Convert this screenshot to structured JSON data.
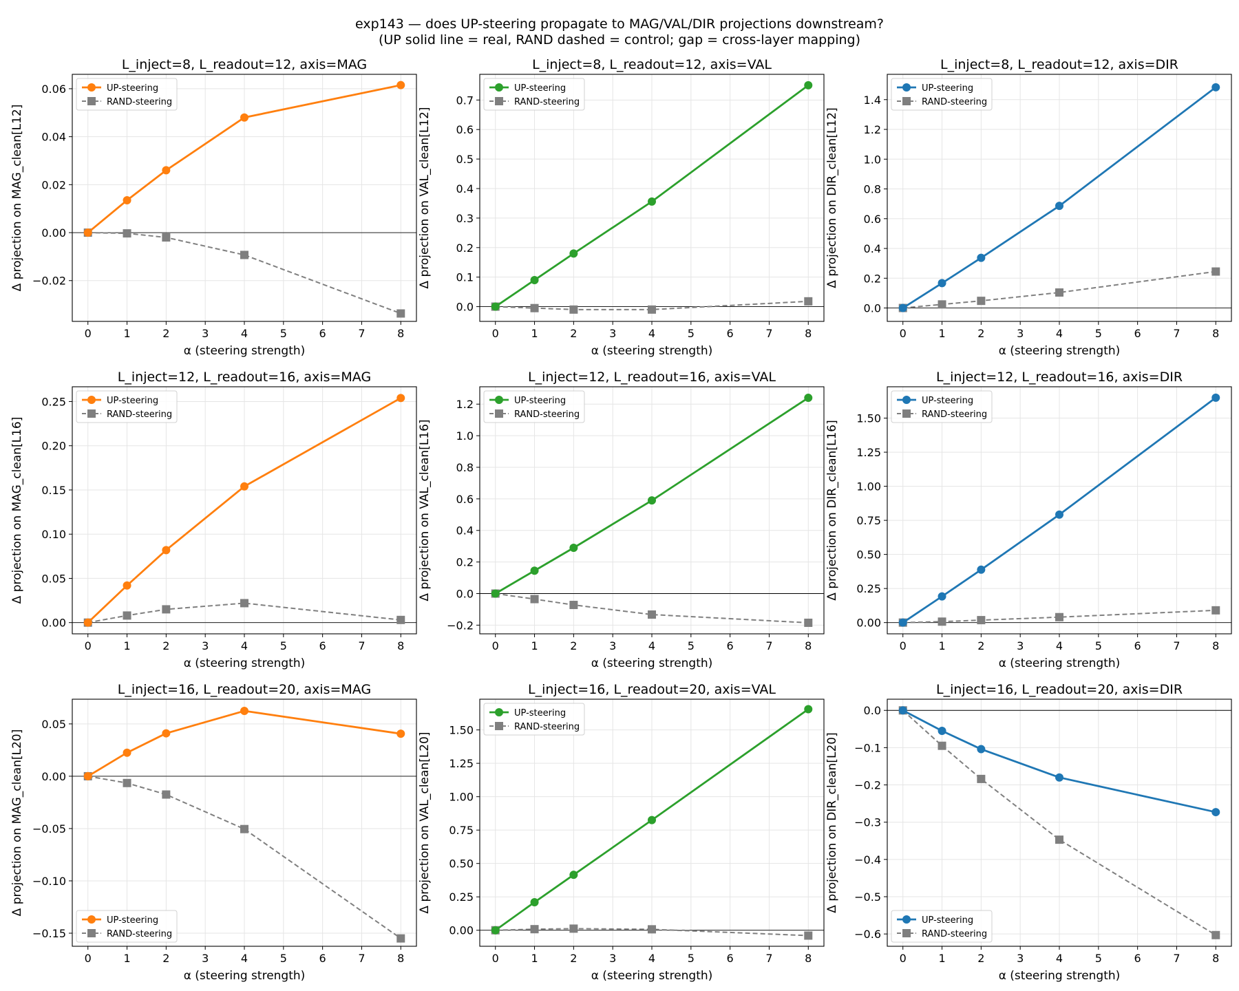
{
  "figure": {
    "title_line1": "exp143 — does UP-steering propagate to MAG/VAL/DIR projections downstream?",
    "title_line2": "(UP solid line = real, RAND dashed = control; gap = cross-layer mapping)"
  },
  "colors": {
    "MAG": "#ff7f0e",
    "VAL": "#2ca02c",
    "DIR": "#1f77b4",
    "rand": "#7f7f7f"
  },
  "chart_data": [
    {
      "type": "line",
      "title": "L_inject=8, L_readout=12, axis=MAG",
      "axis": "MAG",
      "xlabel": "α (steering strength)",
      "ylabel": "Δ projection on MAG_clean[L12]",
      "x": [
        0,
        1,
        2,
        4,
        8
      ],
      "xlim": [
        -0.4,
        8.4
      ],
      "xticks": [
        0,
        1,
        2,
        3,
        4,
        5,
        6,
        7,
        8
      ],
      "ylim": [
        -0.037,
        0.066
      ],
      "yticks": [
        -0.02,
        0.0,
        0.02,
        0.04,
        0.06
      ],
      "ytick_labels": [
        "−0.02",
        "0.00",
        "0.02",
        "0.04",
        "0.06"
      ],
      "legend": "upper left",
      "series": [
        {
          "name": "UP-steering",
          "style": "solid",
          "marker": "circle",
          "values": [
            0.0,
            0.0135,
            0.026,
            0.048,
            0.0615
          ]
        },
        {
          "name": "RAND-steering",
          "style": "dashed",
          "marker": "square",
          "values": [
            0.0,
            -0.0003,
            -0.002,
            -0.0093,
            -0.0337
          ]
        }
      ]
    },
    {
      "type": "line",
      "title": "L_inject=8, L_readout=12, axis=VAL",
      "axis": "VAL",
      "xlabel": "α (steering strength)",
      "ylabel": "Δ projection on VAL_clean[L12]",
      "x": [
        0,
        1,
        2,
        4,
        8
      ],
      "xlim": [
        -0.4,
        8.4
      ],
      "xticks": [
        0,
        1,
        2,
        3,
        4,
        5,
        6,
        7,
        8
      ],
      "ylim": [
        -0.05,
        0.787
      ],
      "yticks": [
        0.0,
        0.1,
        0.2,
        0.3,
        0.4,
        0.5,
        0.6,
        0.7
      ],
      "ytick_labels": [
        "0.0",
        "0.1",
        "0.2",
        "0.3",
        "0.4",
        "0.5",
        "0.6",
        "0.7"
      ],
      "legend": "upper left",
      "series": [
        {
          "name": "UP-steering",
          "style": "solid",
          "marker": "circle",
          "values": [
            0.0,
            0.09,
            0.18,
            0.356,
            0.75
          ]
        },
        {
          "name": "RAND-steering",
          "style": "dashed",
          "marker": "square",
          "values": [
            0.0,
            -0.005,
            -0.01,
            -0.01,
            0.018
          ]
        }
      ]
    },
    {
      "type": "line",
      "title": "L_inject=8, L_readout=12, axis=DIR",
      "axis": "DIR",
      "xlabel": "α (steering strength)",
      "ylabel": "Δ projection on DIR_clean[L12]",
      "x": [
        0,
        1,
        2,
        4,
        8
      ],
      "xlim": [
        -0.4,
        8.4
      ],
      "xticks": [
        0,
        1,
        2,
        3,
        4,
        5,
        6,
        7,
        8
      ],
      "ylim": [
        -0.09,
        1.57
      ],
      "yticks": [
        0.0,
        0.2,
        0.4,
        0.6,
        0.8,
        1.0,
        1.2,
        1.4
      ],
      "ytick_labels": [
        "0.0",
        "0.2",
        "0.4",
        "0.6",
        "0.8",
        "1.0",
        "1.2",
        "1.4"
      ],
      "legend": "upper left",
      "series": [
        {
          "name": "UP-steering",
          "style": "solid",
          "marker": "circle",
          "values": [
            0.0,
            0.167,
            0.337,
            0.686,
            1.483
          ]
        },
        {
          "name": "RAND-steering",
          "style": "dashed",
          "marker": "square",
          "values": [
            0.0,
            0.024,
            0.048,
            0.104,
            0.245
          ]
        }
      ]
    },
    {
      "type": "line",
      "title": "L_inject=12, L_readout=16, axis=MAG",
      "axis": "MAG",
      "xlabel": "α (steering strength)",
      "ylabel": "Δ projection on MAG_clean[L16]",
      "x": [
        0,
        1,
        2,
        4,
        8
      ],
      "xlim": [
        -0.4,
        8.4
      ],
      "xticks": [
        0,
        1,
        2,
        3,
        4,
        5,
        6,
        7,
        8
      ],
      "ylim": [
        -0.0127,
        0.2667
      ],
      "yticks": [
        0.0,
        0.05,
        0.1,
        0.15,
        0.2,
        0.25
      ],
      "ytick_labels": [
        "0.00",
        "0.05",
        "0.10",
        "0.15",
        "0.20",
        "0.25"
      ],
      "legend": "upper left",
      "series": [
        {
          "name": "UP-steering",
          "style": "solid",
          "marker": "circle",
          "values": [
            0.0,
            0.042,
            0.082,
            0.154,
            0.254
          ]
        },
        {
          "name": "RAND-steering",
          "style": "dashed",
          "marker": "square",
          "values": [
            0.0,
            0.008,
            0.015,
            0.022,
            0.003
          ]
        }
      ]
    },
    {
      "type": "line",
      "title": "L_inject=12, L_readout=16, axis=VAL",
      "axis": "VAL",
      "xlabel": "α (steering strength)",
      "ylabel": "Δ projection on VAL_clean[L16]",
      "x": [
        0,
        1,
        2,
        4,
        8
      ],
      "xlim": [
        -0.4,
        8.4
      ],
      "xticks": [
        0,
        1,
        2,
        3,
        4,
        5,
        6,
        7,
        8
      ],
      "ylim": [
        -0.255,
        1.31
      ],
      "yticks": [
        -0.2,
        0.0,
        0.2,
        0.4,
        0.6,
        0.8,
        1.0,
        1.2
      ],
      "ytick_labels": [
        "−0.2",
        "0.0",
        "0.2",
        "0.4",
        "0.6",
        "0.8",
        "1.0",
        "1.2"
      ],
      "legend": "upper left",
      "series": [
        {
          "name": "UP-steering",
          "style": "solid",
          "marker": "circle",
          "values": [
            0.0,
            0.145,
            0.29,
            0.59,
            1.24
          ]
        },
        {
          "name": "RAND-steering",
          "style": "dashed",
          "marker": "square",
          "values": [
            0.0,
            -0.035,
            -0.072,
            -0.133,
            -0.185
          ]
        }
      ]
    },
    {
      "type": "line",
      "title": "L_inject=12, L_readout=16, axis=DIR",
      "axis": "DIR",
      "xlabel": "α (steering strength)",
      "ylabel": "Δ projection on DIR_clean[L16]",
      "x": [
        0,
        1,
        2,
        4,
        8
      ],
      "xlim": [
        -0.4,
        8.4
      ],
      "xticks": [
        0,
        1,
        2,
        3,
        4,
        5,
        6,
        7,
        8
      ],
      "ylim": [
        -0.0825,
        1.73
      ],
      "yticks": [
        0.0,
        0.25,
        0.5,
        0.75,
        1.0,
        1.25,
        1.5
      ],
      "ytick_labels": [
        "0.00",
        "0.25",
        "0.50",
        "0.75",
        "1.00",
        "1.25",
        "1.50"
      ],
      "legend": "upper left",
      "series": [
        {
          "name": "UP-steering",
          "style": "solid",
          "marker": "circle",
          "values": [
            0.0,
            0.192,
            0.388,
            0.792,
            1.65
          ]
        },
        {
          "name": "RAND-steering",
          "style": "dashed",
          "marker": "square",
          "values": [
            0.0,
            0.007,
            0.018,
            0.04,
            0.09
          ]
        }
      ]
    },
    {
      "type": "line",
      "title": "L_inject=16, L_readout=20, axis=MAG",
      "axis": "MAG",
      "xlabel": "α (steering strength)",
      "ylabel": "Δ projection on MAG_clean[L20]",
      "x": [
        0,
        1,
        2,
        4,
        8
      ],
      "xlim": [
        -0.4,
        8.4
      ],
      "xticks": [
        0,
        1,
        2,
        3,
        4,
        5,
        6,
        7,
        8
      ],
      "ylim": [
        -0.1625,
        0.0736
      ],
      "yticks": [
        -0.15,
        -0.1,
        -0.05,
        0.0,
        0.05
      ],
      "ytick_labels": [
        "−0.15",
        "−0.10",
        "−0.05",
        "0.00",
        "0.05"
      ],
      "legend": "lower left",
      "series": [
        {
          "name": "UP-steering",
          "style": "solid",
          "marker": "circle",
          "values": [
            0.0,
            0.0225,
            0.041,
            0.0624,
            0.0406
          ]
        },
        {
          "name": "RAND-steering",
          "style": "dashed",
          "marker": "square",
          "values": [
            0.0,
            -0.0065,
            -0.0175,
            -0.0505,
            -0.155
          ]
        }
      ]
    },
    {
      "type": "line",
      "title": "L_inject=16, L_readout=20, axis=VAL",
      "axis": "VAL",
      "xlabel": "α (steering strength)",
      "ylabel": "Δ projection on VAL_clean[L20]",
      "x": [
        0,
        1,
        2,
        4,
        8
      ],
      "xlim": [
        -0.4,
        8.4
      ],
      "xticks": [
        0,
        1,
        2,
        3,
        4,
        5,
        6,
        7,
        8
      ],
      "ylim": [
        -0.12,
        1.73
      ],
      "yticks": [
        0.0,
        0.25,
        0.5,
        0.75,
        1.0,
        1.25,
        1.5
      ],
      "ytick_labels": [
        "0.00",
        "0.25",
        "0.50",
        "0.75",
        "1.00",
        "1.25",
        "1.50"
      ],
      "legend": "upper left",
      "series": [
        {
          "name": "UP-steering",
          "style": "solid",
          "marker": "circle",
          "values": [
            0.0,
            0.21,
            0.415,
            0.825,
            1.655
          ]
        },
        {
          "name": "RAND-steering",
          "style": "dashed",
          "marker": "square",
          "values": [
            0.0,
            0.008,
            0.012,
            0.007,
            -0.04
          ]
        }
      ]
    },
    {
      "type": "line",
      "title": "L_inject=16, L_readout=20, axis=DIR",
      "axis": "DIR",
      "xlabel": "α (steering strength)",
      "ylabel": "Δ projection on DIR_clean[L20]",
      "x": [
        0,
        1,
        2,
        4,
        8
      ],
      "xlim": [
        -0.4,
        8.4
      ],
      "xticks": [
        0,
        1,
        2,
        3,
        4,
        5,
        6,
        7,
        8
      ],
      "ylim": [
        -0.633,
        0.03
      ],
      "yticks": [
        -0.6,
        -0.5,
        -0.4,
        -0.3,
        -0.2,
        -0.1,
        0.0
      ],
      "ytick_labels": [
        "−0.6",
        "−0.5",
        "−0.4",
        "−0.3",
        "−0.2",
        "−0.1",
        "0.0"
      ],
      "legend": "lower left",
      "series": [
        {
          "name": "UP-steering",
          "style": "solid",
          "marker": "circle",
          "values": [
            0.0,
            -0.055,
            -0.104,
            -0.18,
            -0.273
          ]
        },
        {
          "name": "RAND-steering",
          "style": "dashed",
          "marker": "square",
          "values": [
            0.0,
            -0.095,
            -0.184,
            -0.347,
            -0.603
          ]
        }
      ]
    }
  ]
}
